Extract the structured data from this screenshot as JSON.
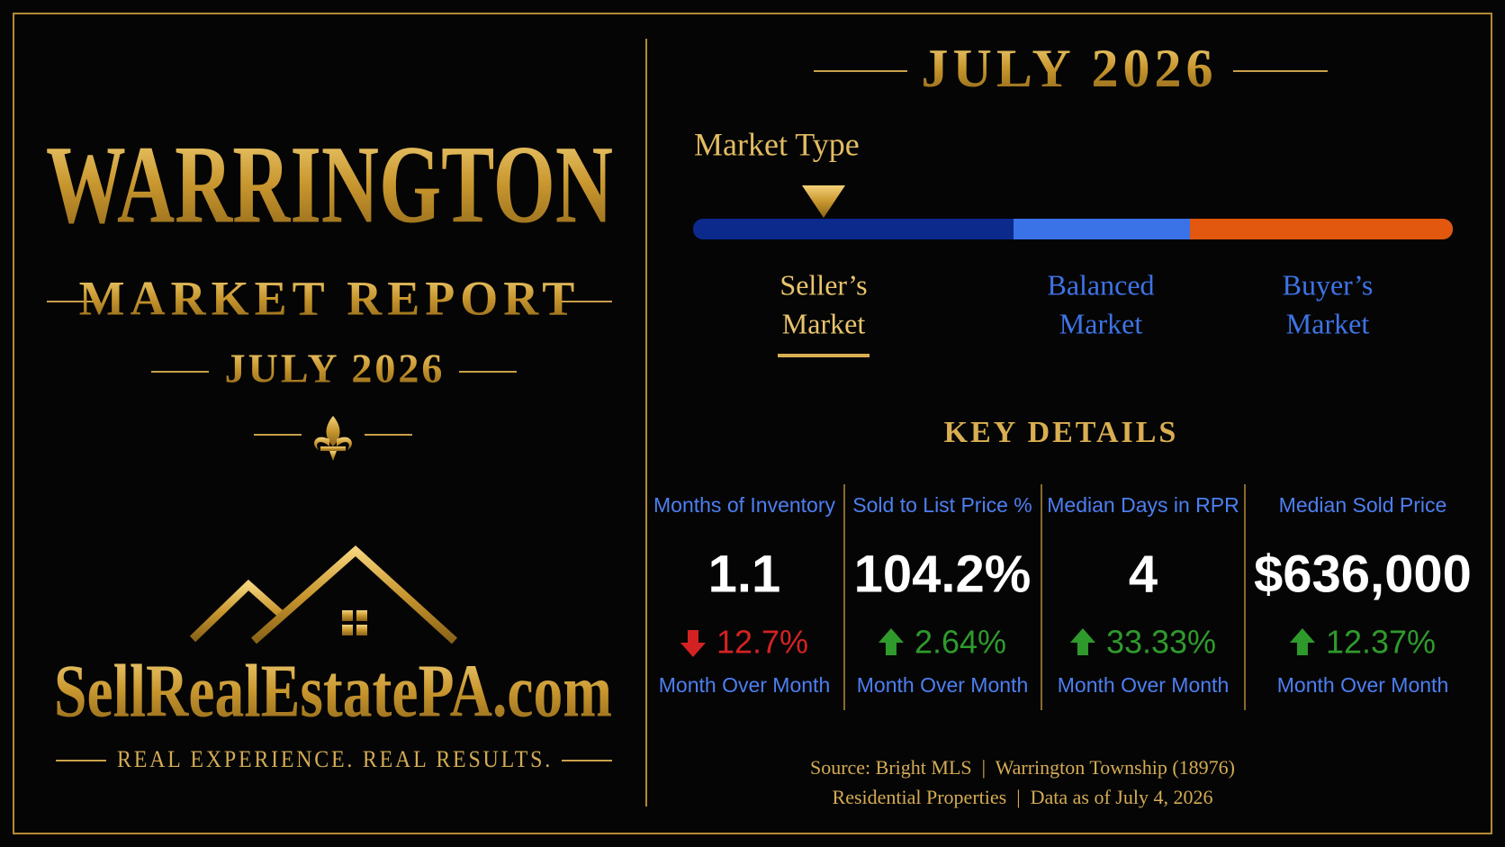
{
  "left": {
    "title": "WARRINGTON",
    "subtitle": "MARKET REPORT",
    "date": "JULY 2026",
    "brand": "SellRealEstatePA.com",
    "tagline": "REAL EXPERIENCE. REAL RESULTS."
  },
  "right": {
    "date": "JULY 2026",
    "market_type_label": "Market Type",
    "market_types": [
      {
        "lines": [
          "Seller’s",
          "Market"
        ],
        "color": "#0b2a8c",
        "active": true
      },
      {
        "lines": [
          "Balanced",
          "Market"
        ],
        "color": "#3a72e8",
        "active": false
      },
      {
        "lines": [
          "Buyer’s",
          "Market"
        ],
        "color": "#e2580f",
        "active": false
      }
    ],
    "key_details_title": "KEY DETAILS",
    "metrics": [
      {
        "label": "Months of Inventory",
        "value": "1.1",
        "change": "12.7%",
        "direction": "down",
        "period": "Month Over Month"
      },
      {
        "label": "Sold to List Price %",
        "value": "104.2%",
        "change": "2.64%",
        "direction": "up",
        "period": "Month Over Month"
      },
      {
        "label": "Median Days in RPR",
        "value": "4",
        "change": "33.33%",
        "direction": "up",
        "period": "Month Over Month"
      },
      {
        "label": "Median Sold Price",
        "value": "$636,000",
        "change": "12.37%",
        "direction": "up",
        "period": "Month Over Month"
      }
    ],
    "source": [
      "Source: Bright MLS  |  Warrington Township (18976)",
      "Residential Properties  |  Data as of July 4, 2026"
    ]
  }
}
